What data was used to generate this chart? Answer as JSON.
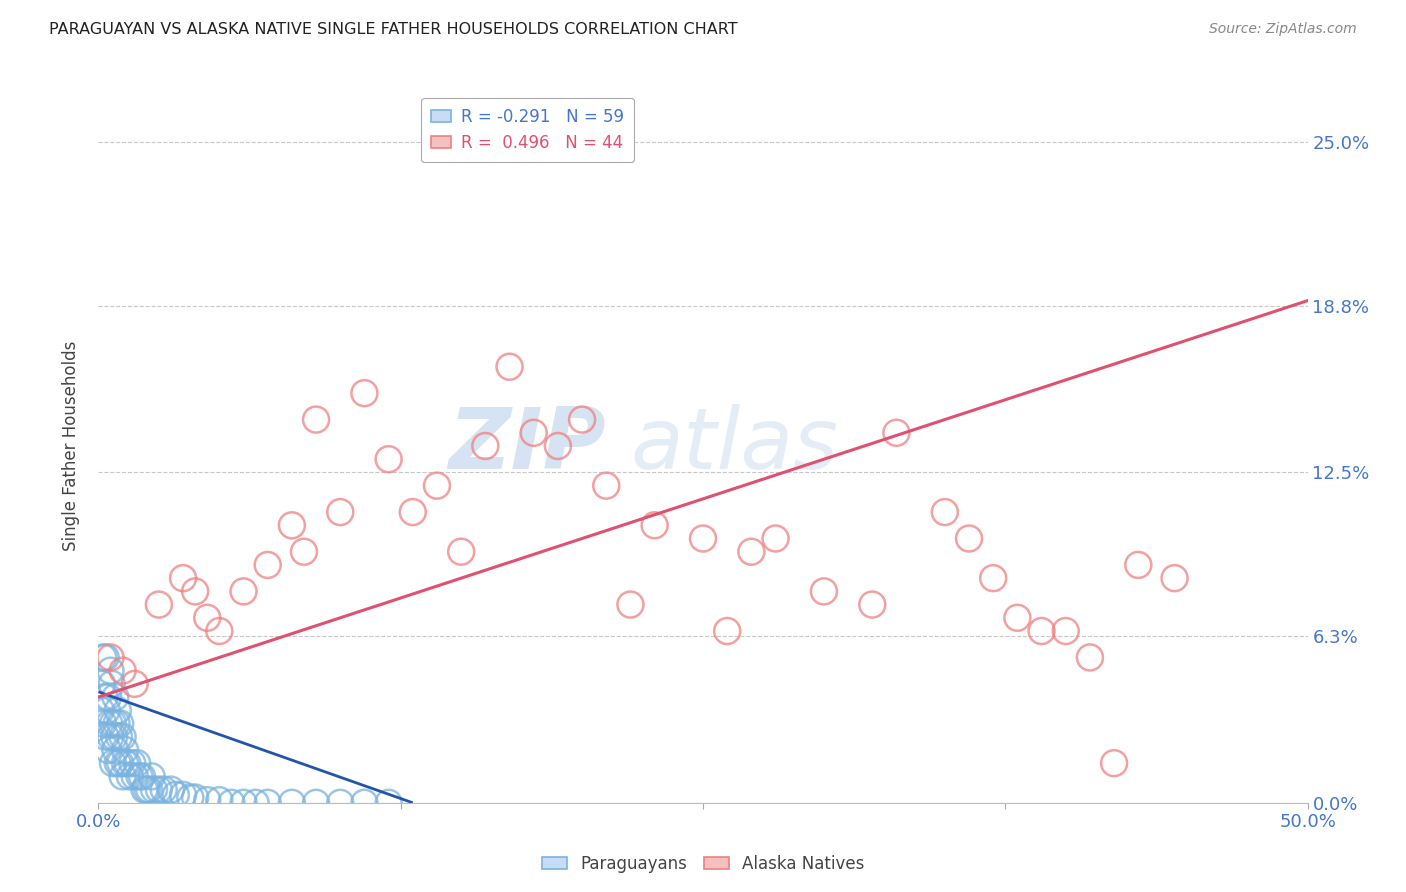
{
  "title": "PARAGUAYAN VS ALASKA NATIVE SINGLE FATHER HOUSEHOLDS CORRELATION CHART",
  "source": "Source: ZipAtlas.com",
  "ylabel": "Single Father Households",
  "ytick_labels": [
    "0.0%",
    "6.3%",
    "12.5%",
    "18.8%",
    "25.0%"
  ],
  "ytick_values": [
    0.0,
    6.3,
    12.5,
    18.8,
    25.0
  ],
  "xlim": [
    0.0,
    50.0
  ],
  "ylim": [
    0.0,
    27.0
  ],
  "paraguayan_color": "#7ab3e0",
  "alaska_color": "#f08080",
  "trendline_paraguayan_color": "#2255aa",
  "trendline_alaska_color": "#e05070",
  "watermark_zip": "ZIP",
  "watermark_atlas": "atlas",
  "paraguayans_label": "Paraguayans",
  "alaska_label": "Alaska Natives",
  "background_color": "#ffffff",
  "grid_color": "#c8c8c8",
  "paraguayan_x": [
    0.1,
    0.15,
    0.2,
    0.2,
    0.25,
    0.3,
    0.3,
    0.35,
    0.4,
    0.4,
    0.45,
    0.5,
    0.5,
    0.55,
    0.6,
    0.6,
    0.65,
    0.7,
    0.7,
    0.75,
    0.8,
    0.8,
    0.85,
    0.9,
    0.9,
    1.0,
    1.0,
    1.1,
    1.1,
    1.2,
    1.3,
    1.4,
    1.5,
    1.6,
    1.7,
    1.8,
    1.9,
    2.0,
    2.1,
    2.2,
    2.3,
    2.5,
    2.7,
    3.0,
    3.2,
    3.5,
    3.8,
    4.0,
    4.5,
    5.0,
    5.5,
    6.0,
    6.5,
    7.0,
    8.0,
    9.0,
    10.0,
    11.0,
    12.0
  ],
  "paraguayan_y": [
    3.5,
    4.5,
    5.5,
    3.0,
    4.0,
    5.5,
    2.5,
    3.5,
    4.0,
    2.0,
    3.0,
    5.0,
    2.5,
    4.5,
    3.0,
    1.5,
    2.5,
    4.0,
    2.0,
    3.0,
    3.5,
    1.5,
    2.5,
    3.0,
    1.5,
    2.5,
    1.0,
    2.0,
    1.5,
    1.5,
    1.0,
    1.5,
    1.0,
    1.5,
    1.0,
    1.0,
    0.5,
    0.5,
    0.5,
    1.0,
    0.5,
    0.5,
    0.5,
    0.5,
    0.3,
    0.3,
    0.2,
    0.2,
    0.1,
    0.1,
    0.0,
    0.0,
    0.0,
    0.0,
    0.0,
    0.0,
    0.0,
    0.0,
    0.0
  ],
  "alaska_x": [
    0.5,
    1.0,
    1.5,
    2.5,
    3.5,
    4.0,
    4.5,
    5.0,
    6.0,
    7.0,
    8.0,
    8.5,
    9.0,
    10.0,
    11.0,
    12.0,
    13.0,
    14.0,
    15.0,
    16.0,
    17.0,
    18.0,
    19.0,
    20.0,
    21.0,
    22.0,
    23.0,
    25.0,
    26.0,
    27.0,
    28.0,
    30.0,
    32.0,
    33.0,
    35.0,
    36.0,
    37.0,
    38.0,
    39.0,
    40.0,
    41.0,
    42.0,
    43.0,
    44.5
  ],
  "alaska_y": [
    5.5,
    5.0,
    4.5,
    7.5,
    8.5,
    8.0,
    7.0,
    6.5,
    8.0,
    9.0,
    10.5,
    9.5,
    14.5,
    11.0,
    15.5,
    13.0,
    11.0,
    12.0,
    9.5,
    13.5,
    16.5,
    14.0,
    13.5,
    14.5,
    12.0,
    7.5,
    10.5,
    10.0,
    6.5,
    9.5,
    10.0,
    8.0,
    7.5,
    14.0,
    11.0,
    10.0,
    8.5,
    7.0,
    6.5,
    6.5,
    5.5,
    1.5,
    9.0,
    8.5
  ],
  "legend_text_1": "R = -0.291   N = 59",
  "legend_text_2": "R =  0.496   N = 44"
}
